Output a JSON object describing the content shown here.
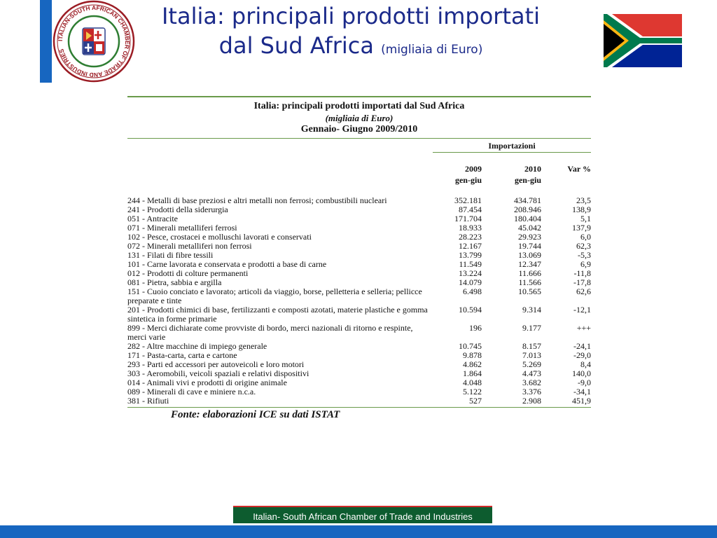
{
  "slide": {
    "title_line1": "Italia: principali prodotti importati",
    "title_line2": "dal Sud Africa",
    "title_unit": "(migliaia di Euro)",
    "logo_text": "ITALIAN-SOUTH AFRICAN CHAMBER OF TRADE AND INDUSTRIES",
    "footer_banner": "Italian- South African Chamber of Trade and Industries"
  },
  "table": {
    "title": "Italia: principali prodotti importati dal Sud Africa",
    "unit": "(migliaia di Euro)",
    "period": "Gennaio- Giugno 2009/2010",
    "group_header": "Importazioni",
    "columns": [
      {
        "year": "2009",
        "sub": "gen-giu"
      },
      {
        "year": "2010",
        "sub": "gen-giu"
      },
      {
        "year": "Var %",
        "sub": ""
      }
    ],
    "rows": [
      {
        "desc": "244 - Metalli di base preziosi e altri metalli non ferrosi; combustibili nucleari",
        "v2009": "352.181",
        "v2010": "434.781",
        "var": "23,5"
      },
      {
        "desc": "241 - Prodotti della siderurgia",
        "v2009": "87.454",
        "v2010": "208.946",
        "var": "138,9"
      },
      {
        "desc": "051 - Antracite",
        "v2009": "171.704",
        "v2010": "180.404",
        "var": "5,1"
      },
      {
        "desc": "071 - Minerali metalliferi ferrosi",
        "v2009": "18.933",
        "v2010": "45.042",
        "var": "137,9"
      },
      {
        "desc": "102 - Pesce, crostacei e molluschi lavorati e conservati",
        "v2009": "28.223",
        "v2010": "29.923",
        "var": "6,0"
      },
      {
        "desc": "072 - Minerali metalliferi non ferrosi",
        "v2009": "12.167",
        "v2010": "19.744",
        "var": "62,3"
      },
      {
        "desc": "131 - Filati di fibre tessili",
        "v2009": "13.799",
        "v2010": "13.069",
        "var": "-5,3"
      },
      {
        "desc": "101 - Carne lavorata e conservata e prodotti a base di carne",
        "v2009": "11.549",
        "v2010": "12.347",
        "var": "6,9"
      },
      {
        "desc": "012 - Prodotti di colture permanenti",
        "v2009": "13.224",
        "v2010": "11.666",
        "var": "-11,8"
      },
      {
        "desc": "081 - Pietra, sabbia e argilla",
        "v2009": "14.079",
        "v2010": "11.566",
        "var": "-17,8"
      },
      {
        "desc": "151 - Cuoio conciato e lavorato; articoli da viaggio, borse, pelletteria e selleria; pellicce preparate e tinte",
        "v2009": "6.498",
        "v2010": "10.565",
        "var": "62,6"
      },
      {
        "desc": "201 - Prodotti chimici di base, fertilizzanti e composti azotati, materie plastiche e gomma sintetica in forme primarie",
        "v2009": "10.594",
        "v2010": "9.314",
        "var": "-12,1"
      },
      {
        "desc": "899 - Merci dichiarate come provviste di bordo, merci nazionali di ritorno e respinte, merci varie",
        "v2009": "196",
        "v2010": "9.177",
        "var": "+++"
      },
      {
        "desc": "282 - Altre macchine di impiego generale",
        "v2009": "10.745",
        "v2010": "8.157",
        "var": "-24,1"
      },
      {
        "desc": "171 - Pasta-carta, carta e cartone",
        "v2009": "9.878",
        "v2010": "7.013",
        "var": "-29,0"
      },
      {
        "desc": "293 - Parti ed accessori per autoveicoli e loro motori",
        "v2009": "4.862",
        "v2010": "5.269",
        "var": "8,4"
      },
      {
        "desc": "303 - Aeromobili, veicoli spaziali e relativi dispositivi",
        "v2009": "1.864",
        "v2010": "4.473",
        "var": "140,0"
      },
      {
        "desc": "014 - Animali vivi e prodotti di origine animale",
        "v2009": "4.048",
        "v2010": "3.682",
        "var": "-9,0"
      },
      {
        "desc": "089 - Minerali di cave e miniere n.c.a.",
        "v2009": "5.122",
        "v2010": "3.376",
        "var": "-34,1"
      },
      {
        "desc": "381 - Rifiuti",
        "v2009": "527",
        "v2010": "2.908",
        "var": "451,9"
      }
    ],
    "source": "Fonte: elaborazioni ICE su dati ISTAT"
  },
  "colors": {
    "blue_bar": "#1766c0",
    "title_text": "#1b2a8a",
    "table_rule": "#6a9a4a",
    "footer_green": "#0d5c2f",
    "footer_red_line": "#d02a2a"
  },
  "icons": {
    "logo": "chamber-seal-icon",
    "flag": "south-africa-flag-icon"
  }
}
